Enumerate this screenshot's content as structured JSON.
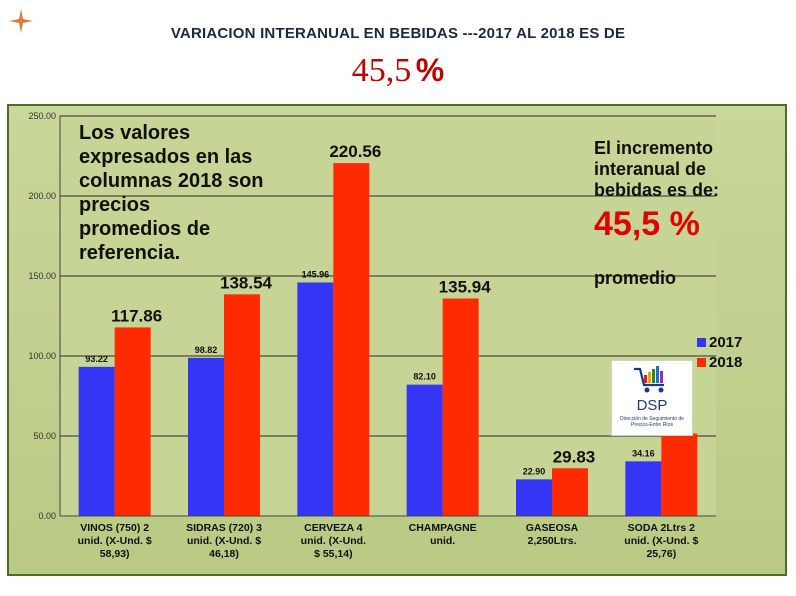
{
  "slide": {
    "title": "VARIACION  INTERANUAL EN BEBIDAS ---2017 AL 2018 ES DE",
    "subtitle_value": "45,5",
    "subtitle_unit": "%"
  },
  "notes": {
    "left": "Los valores\nexpresados en las\ncolumnas 2018 son\nprecios\npromedios de\nreferencia.",
    "right_text": "El incremento\ninteranual de\nbebidas es de:",
    "right_value": "45,5 %",
    "right_suffix": "promedio"
  },
  "logo": {
    "name": "DSP",
    "subtitle": "Dirección de Seguimiento de Precios-Entre Ríos"
  },
  "colors": {
    "series_2017": "#3535f5",
    "series_2018": "#ff2a00",
    "plot_bg": "#c6d596",
    "frame": "#4d6b2a",
    "accent_red": "#e00000"
  },
  "chart_data": {
    "type": "bar",
    "title": "",
    "xlabel": "",
    "ylabel": "",
    "ylim": [
      0,
      250
    ],
    "yticks": [
      "0.00",
      "50.00",
      "100.00",
      "150.00",
      "200.00",
      "250.00"
    ],
    "grid": true,
    "legend": "right",
    "categories": [
      [
        "VINOS (750)    2",
        "unid.    (X-Und. $",
        "58,93)"
      ],
      [
        "SIDRAS (720)  3",
        "unid.    (X-Und. $",
        "46,18)"
      ],
      [
        "CERVEZA      4",
        "unid.     (X-Und.",
        "$ 55,14)"
      ],
      [
        "CHAMPAGNE",
        "unid."
      ],
      [
        "GASEOSA",
        "2,250Ltrs."
      ],
      [
        "SODA 2Ltrs    2",
        "unid.    (X-Und. $",
        "25,76)"
      ]
    ],
    "series": [
      {
        "name": "2017",
        "values": [
          93.22,
          98.82,
          145.96,
          82.1,
          22.9,
          34.16
        ],
        "labels": [
          "93.22",
          "98.82",
          "145.96",
          "82.10",
          "22.90",
          "34.16"
        ]
      },
      {
        "name": "2018",
        "values": [
          117.86,
          138.54,
          220.56,
          135.94,
          29.83,
          51.52
        ],
        "labels": [
          "117.86",
          "138.54",
          "220.56",
          "135.94",
          "29.83",
          "52"
        ]
      }
    ]
  }
}
